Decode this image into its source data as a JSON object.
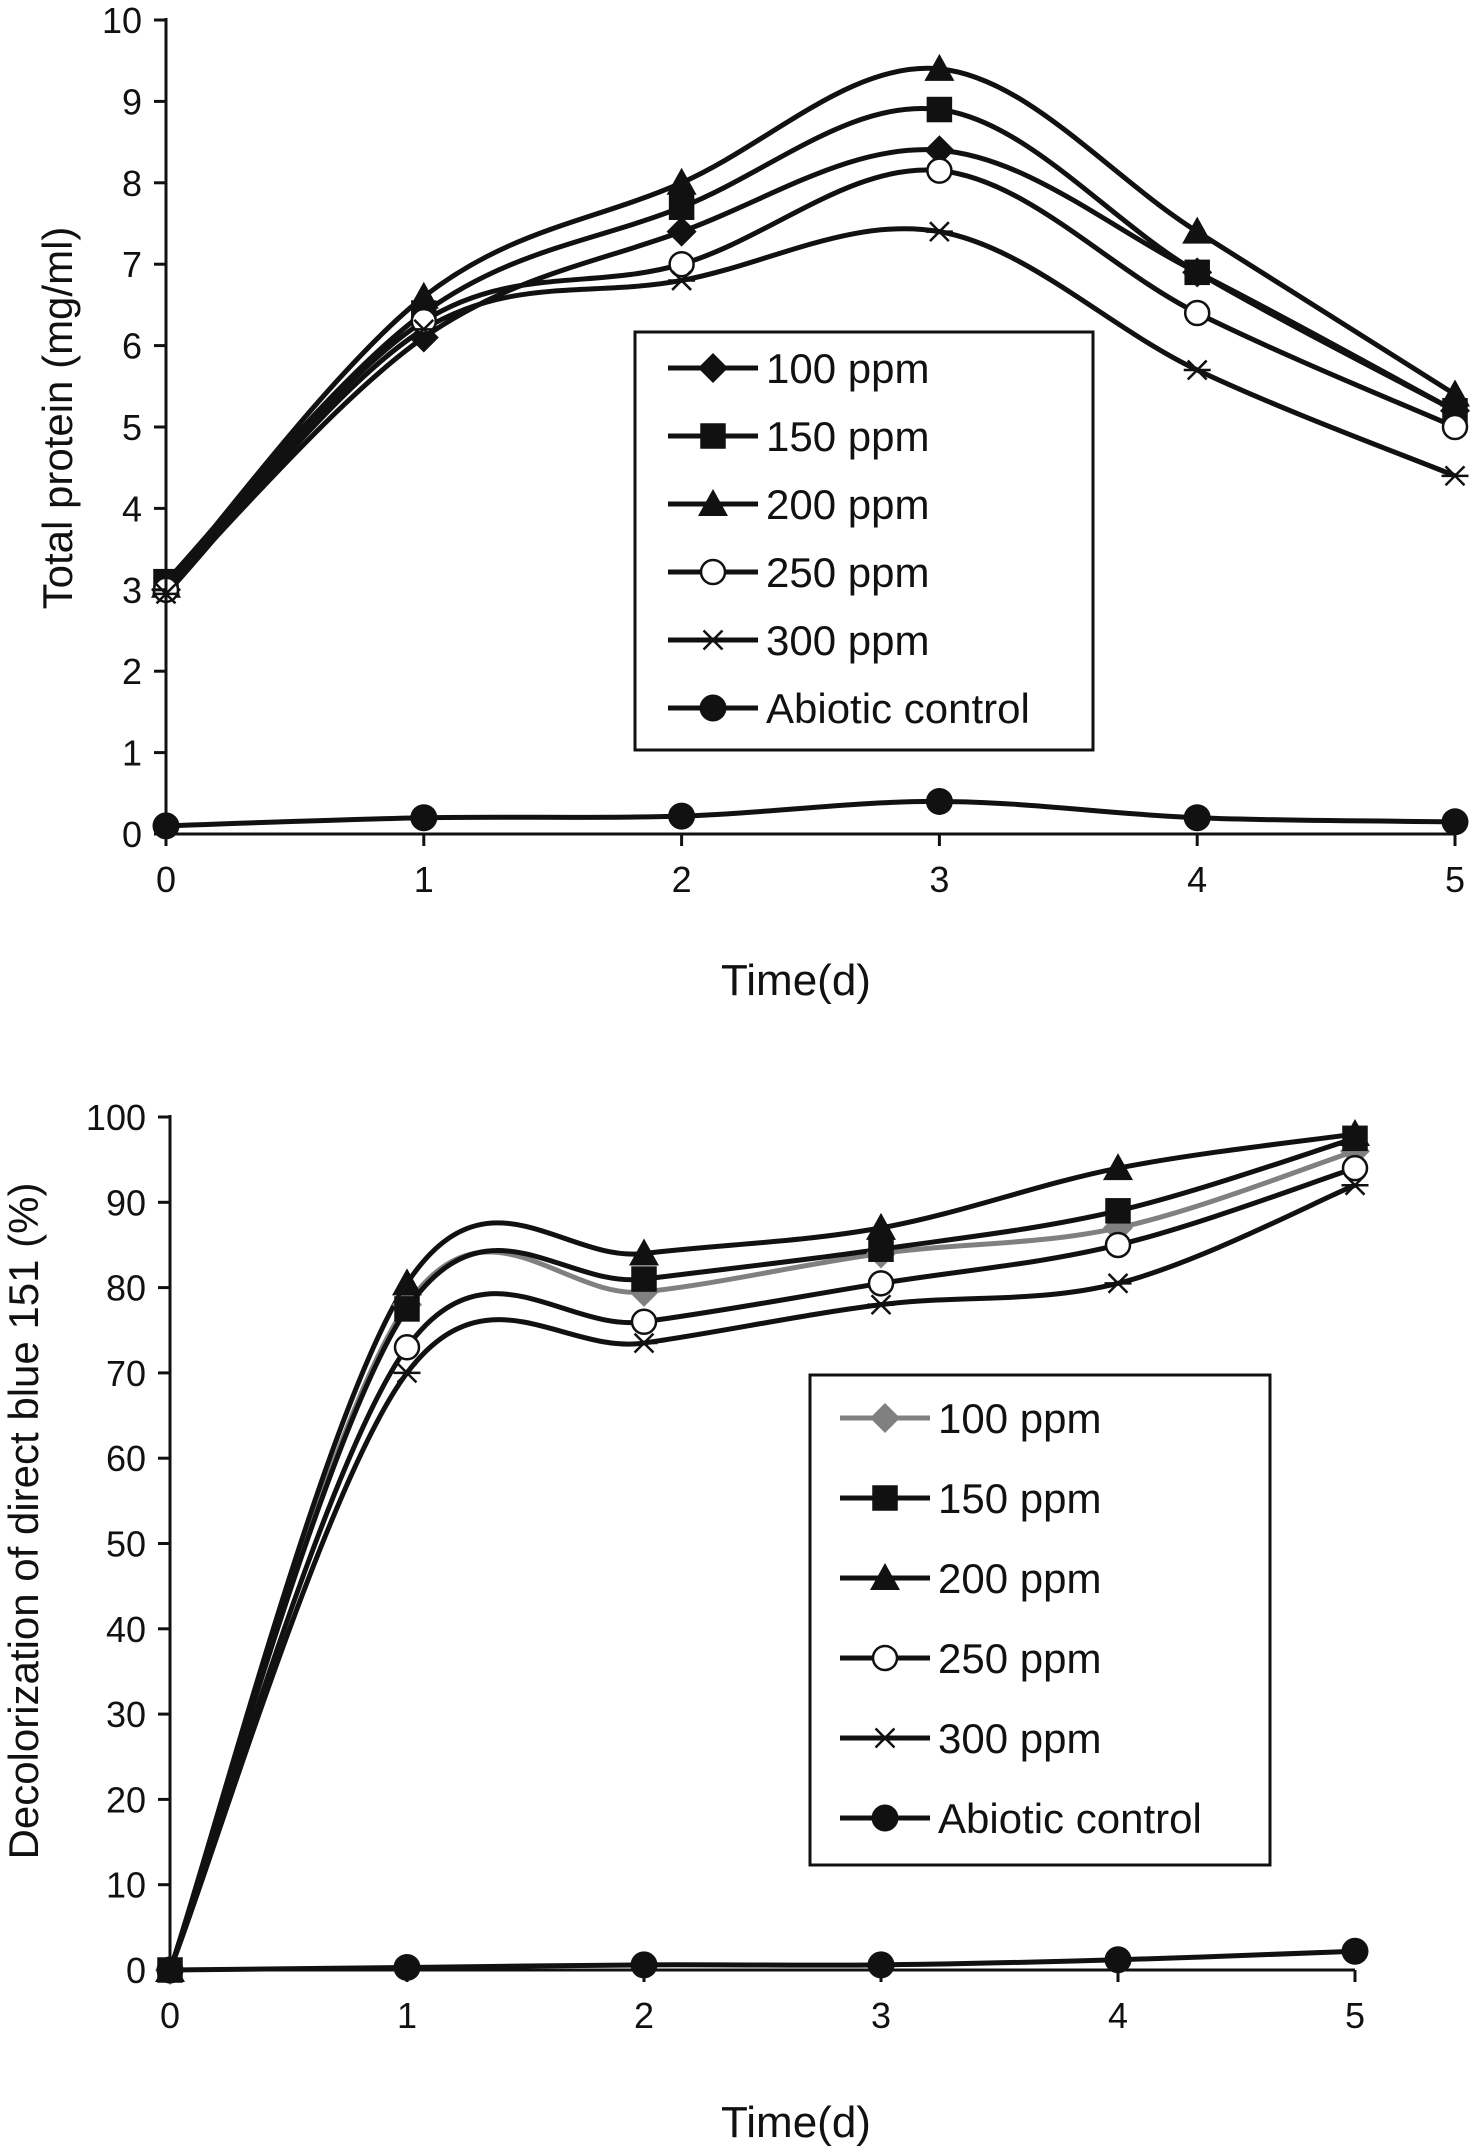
{
  "chart_data": [
    {
      "type": "line",
      "xlabel": "Time(d)",
      "ylabel": "Total protein (mg/ml)",
      "x": [
        0,
        1,
        2,
        3,
        4,
        5
      ],
      "xticks": [
        "0",
        "1",
        "2",
        "3",
        "4",
        "5"
      ],
      "yticks": [
        "0",
        "1",
        "2",
        "3",
        "4",
        "5",
        "6",
        "7",
        "8",
        "9",
        "10"
      ],
      "xlim": [
        0,
        5
      ],
      "ylim": [
        0,
        10
      ],
      "grid": false,
      "legend": "center",
      "series": [
        {
          "name": "100 ppm",
          "marker": "diamond",
          "color": "#111111",
          "values": [
            3.0,
            6.1,
            7.4,
            8.4,
            6.9,
            5.2
          ]
        },
        {
          "name": "150 ppm",
          "marker": "square",
          "color": "#111111",
          "values": [
            3.1,
            6.4,
            7.7,
            8.9,
            6.9,
            5.2
          ]
        },
        {
          "name": "200 ppm",
          "marker": "triangle",
          "color": "#111111",
          "values": [
            3.05,
            6.6,
            8.0,
            9.4,
            7.4,
            5.4
          ]
        },
        {
          "name": "250 ppm",
          "marker": "circle-open",
          "color": "#111111",
          "values": [
            3.0,
            6.3,
            7.0,
            8.15,
            6.4,
            5.0
          ]
        },
        {
          "name": "300 ppm",
          "marker": "asterisk",
          "color": "#111111",
          "values": [
            2.95,
            6.2,
            6.8,
            7.4,
            5.7,
            4.4
          ]
        },
        {
          "name": "Abiotic control",
          "marker": "circle-filled",
          "color": "#111111",
          "values": [
            0.1,
            0.2,
            0.22,
            0.4,
            0.2,
            0.15
          ]
        }
      ]
    },
    {
      "type": "line",
      "xlabel": "Time(d)",
      "ylabel": "Decolorization of direct blue 151 (%)",
      "x": [
        0,
        1,
        2,
        3,
        4,
        5
      ],
      "xticks": [
        "0",
        "1",
        "2",
        "3",
        "4",
        "5"
      ],
      "yticks": [
        "0",
        "10",
        "20",
        "30",
        "40",
        "50",
        "60",
        "70",
        "80",
        "90",
        "100"
      ],
      "xlim": [
        0,
        5
      ],
      "ylim": [
        0,
        100
      ],
      "grid": false,
      "legend": "center-right",
      "series": [
        {
          "name": "100 ppm",
          "marker": "diamond",
          "color": "#808080",
          "values": [
            0,
            78,
            79.5,
            84,
            87,
            96
          ]
        },
        {
          "name": "150 ppm",
          "marker": "square",
          "color": "#111111",
          "values": [
            0,
            77.5,
            81,
            84.5,
            89,
            97.5
          ]
        },
        {
          "name": "200 ppm",
          "marker": "triangle",
          "color": "#111111",
          "values": [
            0,
            80.5,
            84,
            87,
            94,
            98
          ]
        },
        {
          "name": "250 ppm",
          "marker": "circle-open",
          "color": "#111111",
          "values": [
            0,
            73,
            76,
            80.5,
            85,
            94
          ]
        },
        {
          "name": "300 ppm",
          "marker": "asterisk",
          "color": "#111111",
          "values": [
            0,
            70,
            73.5,
            78,
            80.5,
            92
          ]
        },
        {
          "name": "Abiotic control",
          "marker": "circle-filled",
          "color": "#111111",
          "values": [
            0,
            0.3,
            0.6,
            0.6,
            1.2,
            2.2
          ]
        }
      ]
    }
  ]
}
